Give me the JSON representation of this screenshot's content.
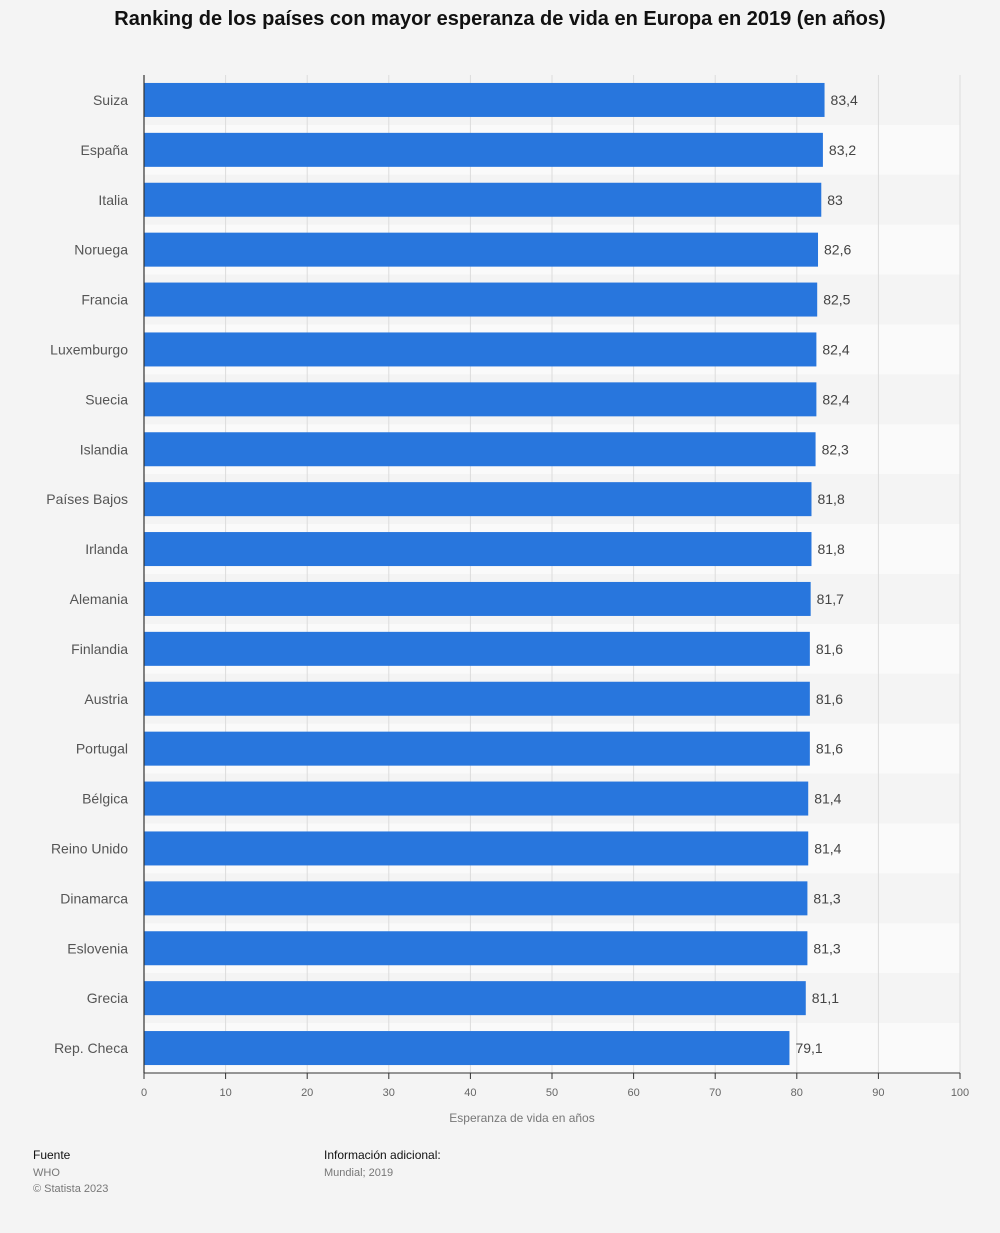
{
  "chart_data": {
    "type": "bar",
    "orientation": "horizontal",
    "title": "Ranking de los países con mayor esperanza de vida en Europa en 2019 (en años)",
    "xlabel": "Esperanza de vida en años",
    "ylabel": "",
    "xlim": [
      0,
      100
    ],
    "ticks": [
      "0",
      "10",
      "20",
      "30",
      "40",
      "50",
      "60",
      "70",
      "80",
      "90",
      "100"
    ],
    "grid": true,
    "bar_color": "#2876dd",
    "categories": [
      "Suiza",
      "España",
      "Italia",
      "Noruega",
      "Francia",
      "Luxemburgo",
      "Suecia",
      "Islandia",
      "Países Bajos",
      "Irlanda",
      "Alemania",
      "Finlandia",
      "Austria",
      "Portugal",
      "Bélgica",
      "Reino Unido",
      "Dinamarca",
      "Eslovenia",
      "Grecia",
      "Rep. Checa"
    ],
    "values": [
      83.4,
      83.2,
      83,
      82.6,
      82.5,
      82.4,
      82.4,
      82.3,
      81.8,
      81.8,
      81.7,
      81.6,
      81.6,
      81.6,
      81.4,
      81.4,
      81.3,
      81.3,
      81.1,
      79.1
    ],
    "value_labels": [
      "83,4",
      "83,2",
      "83",
      "82,6",
      "82,5",
      "82,4",
      "82,4",
      "82,3",
      "81,8",
      "81,8",
      "81,7",
      "81,6",
      "81,6",
      "81,6",
      "81,4",
      "81,4",
      "81,3",
      "81,3",
      "81,1",
      "79,1"
    ]
  },
  "footer": {
    "source_heading": "Fuente",
    "source_name": "WHO",
    "copyright": "© Statista 2023",
    "info_heading": "Información adicional:",
    "info_text": "Mundial; 2019"
  }
}
